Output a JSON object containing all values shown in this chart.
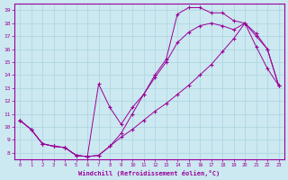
{
  "xlabel": "Windchill (Refroidissement éolien,°C)",
  "background_color": "#cce8f0",
  "grid_color": "#aad4e0",
  "line_color": "#990099",
  "xlim": [
    -0.5,
    23.5
  ],
  "ylim": [
    7.5,
    19.5
  ],
  "xticks": [
    0,
    1,
    2,
    3,
    4,
    5,
    6,
    7,
    8,
    9,
    10,
    11,
    12,
    13,
    14,
    15,
    16,
    17,
    18,
    19,
    20,
    21,
    22,
    23
  ],
  "yticks": [
    8,
    9,
    10,
    11,
    12,
    13,
    14,
    15,
    16,
    17,
    18,
    19
  ],
  "line1_x": [
    0,
    1,
    2,
    3,
    4,
    5,
    6,
    7,
    8,
    9,
    10,
    11,
    12,
    13,
    14,
    15,
    16,
    17,
    18,
    19,
    20,
    21,
    22,
    23
  ],
  "line1_y": [
    10.5,
    9.8,
    8.7,
    8.5,
    8.4,
    7.8,
    7.7,
    7.8,
    8.5,
    9.5,
    11.0,
    12.5,
    14.0,
    15.2,
    18.7,
    19.2,
    19.2,
    18.8,
    18.8,
    18.2,
    18.0,
    16.2,
    14.5,
    13.2
  ],
  "line2_x": [
    0,
    1,
    2,
    3,
    4,
    5,
    6,
    7,
    8,
    9,
    10,
    11,
    12,
    13,
    14,
    15,
    16,
    17,
    18,
    19,
    20,
    21,
    22,
    23
  ],
  "line2_y": [
    10.5,
    9.8,
    8.7,
    8.5,
    8.4,
    7.8,
    7.7,
    13.3,
    11.5,
    10.2,
    11.5,
    12.5,
    13.8,
    15.0,
    16.5,
    17.3,
    17.8,
    18.0,
    17.8,
    17.5,
    18.0,
    17.0,
    16.0,
    13.2
  ],
  "line3_x": [
    0,
    1,
    2,
    3,
    4,
    5,
    6,
    7,
    8,
    9,
    10,
    11,
    12,
    13,
    14,
    15,
    16,
    17,
    18,
    19,
    20,
    21,
    22,
    23
  ],
  "line3_y": [
    10.5,
    9.8,
    8.7,
    8.5,
    8.4,
    7.8,
    7.7,
    7.8,
    8.5,
    9.2,
    9.8,
    10.5,
    11.2,
    11.8,
    12.5,
    13.2,
    14.0,
    14.8,
    15.8,
    16.8,
    18.0,
    17.2,
    16.0,
    13.2
  ]
}
